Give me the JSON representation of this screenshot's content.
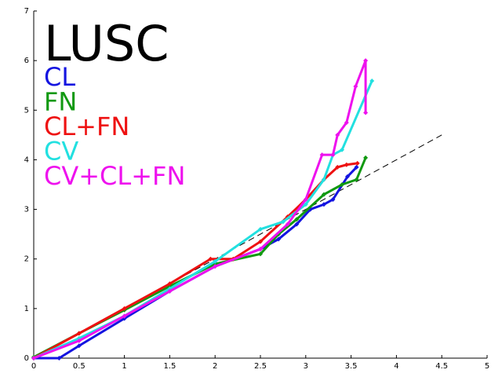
{
  "chart_data": {
    "type": "scatter",
    "title": "LUSC",
    "xlim": [
      0,
      5
    ],
    "ylim": [
      0,
      7
    ],
    "xticks": [
      0,
      0.5,
      1,
      1.5,
      2,
      2.5,
      3,
      3.5,
      4,
      4.5,
      5
    ],
    "yticks": [
      0,
      1,
      2,
      3,
      4,
      5,
      6,
      7
    ],
    "reference_line": {
      "x": [
        0,
        4.5
      ],
      "y": [
        0,
        4.5
      ],
      "color": "#000000"
    },
    "legend": "upper left",
    "series": [
      {
        "name": "CL",
        "color": "#1414e0",
        "x": [
          0,
          0.28,
          0.5,
          1,
          1.5,
          2,
          2.5,
          2.7,
          2.9,
          3.05,
          3.2,
          3.3,
          3.46,
          3.56
        ],
        "y": [
          0,
          0,
          0.25,
          0.8,
          1.35,
          1.85,
          2.2,
          2.4,
          2.7,
          3.0,
          3.1,
          3.2,
          3.66,
          3.85
        ]
      },
      {
        "name": "FN",
        "color": "#119911",
        "x": [
          0,
          0.5,
          1,
          1.5,
          2,
          2.5,
          2.7,
          2.9,
          3.2,
          3.4,
          3.56,
          3.66
        ],
        "y": [
          0.02,
          0.5,
          0.97,
          1.45,
          1.9,
          2.1,
          2.5,
          2.8,
          3.3,
          3.5,
          3.6,
          4.04
        ]
      },
      {
        "name": "CL+FN",
        "color": "#ee1111",
        "x": [
          0,
          0.5,
          1,
          1.5,
          1.95,
          2.2,
          2.5,
          2.8,
          3.0,
          3.2,
          3.35,
          3.45,
          3.57
        ],
        "y": [
          0,
          0.5,
          1.0,
          1.5,
          2.0,
          2.0,
          2.35,
          2.85,
          3.2,
          3.6,
          3.85,
          3.9,
          3.93
        ]
      },
      {
        "name": "CV",
        "color": "#22e0e0",
        "x": [
          0,
          0.5,
          1,
          1.5,
          2,
          2.5,
          2.75,
          3.0,
          3.2,
          3.3,
          3.4,
          3.73
        ],
        "y": [
          0,
          0.4,
          0.85,
          1.4,
          1.95,
          2.6,
          2.75,
          3.1,
          3.6,
          4.1,
          4.2,
          5.59
        ]
      },
      {
        "name": "CV+CL+FN",
        "color": "#ee11ee",
        "x": [
          0,
          0.5,
          1,
          1.5,
          2,
          2.5,
          2.8,
          3.0,
          3.18,
          3.3,
          3.35,
          3.45,
          3.55,
          3.66,
          3.66
        ],
        "y": [
          0,
          0.35,
          0.85,
          1.35,
          1.85,
          2.2,
          2.7,
          3.2,
          4.1,
          4.1,
          4.5,
          4.75,
          5.48,
          6.0,
          4.95
        ]
      }
    ]
  }
}
